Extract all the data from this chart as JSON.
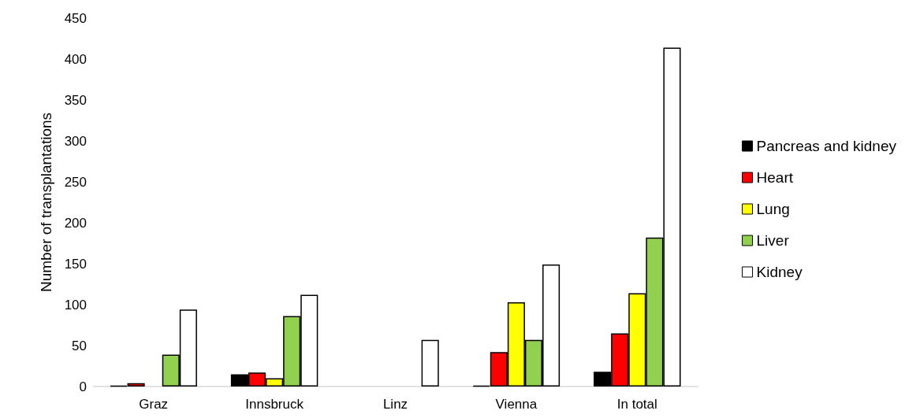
{
  "chart_data": {
    "type": "bar",
    "ylabel": "Number of transplantations",
    "categories": [
      "Graz",
      "Innsbruck",
      "Linz",
      "Vienna",
      "In total"
    ],
    "series": [
      {
        "name": "Pancreas and kidney",
        "color": "#000000",
        "values": [
          1,
          15,
          0,
          1,
          18
        ]
      },
      {
        "name": "Heart",
        "color": "#ff0000",
        "values": [
          4,
          17,
          0,
          42,
          65
        ]
      },
      {
        "name": "Lung",
        "color": "#ffff00",
        "values": [
          0,
          10,
          0,
          103,
          114
        ]
      },
      {
        "name": "Liver",
        "color": "#92d050",
        "values": [
          39,
          86,
          0,
          57,
          182
        ]
      },
      {
        "name": "Kidney",
        "color": "#ffffff",
        "values": [
          94,
          112,
          57,
          149,
          414
        ]
      }
    ],
    "ylim": [
      0,
      450
    ],
    "yticks": [
      0,
      50,
      100,
      150,
      200,
      250,
      300,
      350,
      400,
      450
    ],
    "grid": false,
    "legend": "right"
  }
}
